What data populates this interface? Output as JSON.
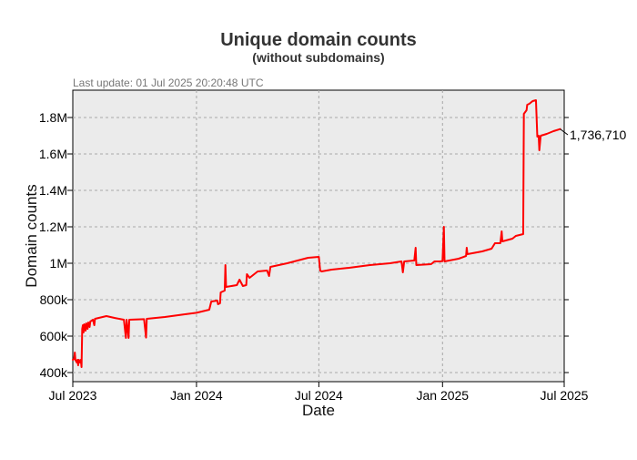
{
  "chart_data": {
    "type": "line",
    "title": "Unique domain counts",
    "subtitle": "(without subdomains)",
    "last_update": "Last update: 01 Jul 2025 20:20:48 UTC",
    "xlabel": "Date",
    "ylabel": "Domain counts",
    "xlim": [
      "2023-07-01",
      "2025-07-01"
    ],
    "ylim": [
      350000,
      1950000
    ],
    "x_ticks": [
      {
        "date": "2023-07-01",
        "label": "Jul 2023"
      },
      {
        "date": "2024-01-01",
        "label": "Jan 2024"
      },
      {
        "date": "2024-07-01",
        "label": "Jul 2024"
      },
      {
        "date": "2025-01-01",
        "label": "Jan 2025"
      },
      {
        "date": "2025-07-01",
        "label": "Jul 2025"
      }
    ],
    "y_ticks": [
      {
        "value": 400000,
        "label": "400k"
      },
      {
        "value": 600000,
        "label": "600k"
      },
      {
        "value": 800000,
        "label": "800k"
      },
      {
        "value": 1000000,
        "label": "1M"
      },
      {
        "value": 1200000,
        "label": "1.2M"
      },
      {
        "value": 1400000,
        "label": "1.4M"
      },
      {
        "value": 1600000,
        "label": "1.6M"
      },
      {
        "value": 1800000,
        "label": "1.8M"
      }
    ],
    "grid": true,
    "last_value_label": "1,736,710",
    "series": [
      {
        "color": "#ff0000",
        "points": [
          [
            "2023-07-01",
            470000
          ],
          [
            "2023-07-03",
            475000
          ],
          [
            "2023-07-04",
            510000
          ],
          [
            "2023-07-05",
            468000
          ],
          [
            "2023-07-07",
            455000
          ],
          [
            "2023-07-08",
            470000
          ],
          [
            "2023-07-09",
            440000
          ],
          [
            "2023-07-10",
            470000
          ],
          [
            "2023-07-11",
            460000
          ],
          [
            "2023-07-12",
            455000
          ],
          [
            "2023-07-13",
            470000
          ],
          [
            "2023-07-14",
            430000
          ],
          [
            "2023-07-15",
            640000
          ],
          [
            "2023-07-16",
            660000
          ],
          [
            "2023-07-17",
            620000
          ],
          [
            "2023-07-18",
            665000
          ],
          [
            "2023-07-20",
            630000
          ],
          [
            "2023-07-21",
            670000
          ],
          [
            "2023-07-23",
            640000
          ],
          [
            "2023-07-24",
            675000
          ],
          [
            "2023-07-26",
            650000
          ],
          [
            "2023-07-27",
            680000
          ],
          [
            "2023-07-29",
            685000
          ],
          [
            "2023-07-31",
            690000
          ],
          [
            "2023-08-02",
            660000
          ],
          [
            "2023-08-03",
            695000
          ],
          [
            "2023-08-20",
            710000
          ],
          [
            "2023-09-01",
            700000
          ],
          [
            "2023-09-15",
            690000
          ],
          [
            "2023-09-18",
            590000
          ],
          [
            "2023-09-19",
            690000
          ],
          [
            "2023-09-22",
            590000
          ],
          [
            "2023-09-23",
            690000
          ],
          [
            "2023-10-15",
            693000
          ],
          [
            "2023-10-18",
            592000
          ],
          [
            "2023-10-19",
            695000
          ],
          [
            "2023-11-15",
            705000
          ],
          [
            "2023-12-15",
            720000
          ],
          [
            "2024-01-01",
            728000
          ],
          [
            "2024-01-20",
            745000
          ],
          [
            "2024-01-23",
            790000
          ],
          [
            "2024-02-01",
            795000
          ],
          [
            "2024-02-02",
            775000
          ],
          [
            "2024-02-05",
            780000
          ],
          [
            "2024-02-06",
            840000
          ],
          [
            "2024-02-12",
            850000
          ],
          [
            "2024-02-13",
            990000
          ],
          [
            "2024-02-14",
            870000
          ],
          [
            "2024-03-01",
            880000
          ],
          [
            "2024-03-05",
            910000
          ],
          [
            "2024-03-10",
            875000
          ],
          [
            "2024-03-15",
            880000
          ],
          [
            "2024-03-16",
            940000
          ],
          [
            "2024-03-20",
            920000
          ],
          [
            "2024-04-01",
            955000
          ],
          [
            "2024-04-15",
            960000
          ],
          [
            "2024-04-18",
            930000
          ],
          [
            "2024-04-20",
            980000
          ],
          [
            "2024-05-15",
            1000000
          ],
          [
            "2024-06-15",
            1030000
          ],
          [
            "2024-07-01",
            1035000
          ],
          [
            "2024-07-03",
            960000
          ],
          [
            "2024-07-05",
            955000
          ],
          [
            "2024-07-20",
            965000
          ],
          [
            "2024-08-15",
            975000
          ],
          [
            "2024-09-15",
            990000
          ],
          [
            "2024-10-15",
            1000000
          ],
          [
            "2024-11-01",
            1010000
          ],
          [
            "2024-11-03",
            950000
          ],
          [
            "2024-11-05",
            1010000
          ],
          [
            "2024-11-20",
            1015000
          ],
          [
            "2024-11-22",
            1085000
          ],
          [
            "2024-11-23",
            990000
          ],
          [
            "2024-12-15",
            995000
          ],
          [
            "2024-12-20",
            1010000
          ],
          [
            "2024-12-28",
            1010000
          ],
          [
            "2025-01-01",
            1012000
          ],
          [
            "2025-01-03",
            1200000
          ],
          [
            "2025-01-04",
            1010000
          ],
          [
            "2025-01-25",
            1025000
          ],
          [
            "2025-02-05",
            1040000
          ],
          [
            "2025-02-06",
            1085000
          ],
          [
            "2025-02-07",
            1050000
          ],
          [
            "2025-03-01",
            1065000
          ],
          [
            "2025-03-15",
            1080000
          ],
          [
            "2025-03-20",
            1110000
          ],
          [
            "2025-03-28",
            1110000
          ],
          [
            "2025-03-30",
            1175000
          ],
          [
            "2025-03-31",
            1120000
          ],
          [
            "2025-04-15",
            1135000
          ],
          [
            "2025-04-20",
            1150000
          ],
          [
            "2025-05-01",
            1160000
          ],
          [
            "2025-05-02",
            1820000
          ],
          [
            "2025-05-04",
            1830000
          ],
          [
            "2025-05-06",
            1840000
          ],
          [
            "2025-05-07",
            1870000
          ],
          [
            "2025-05-10",
            1875000
          ],
          [
            "2025-05-15",
            1890000
          ],
          [
            "2025-05-20",
            1895000
          ],
          [
            "2025-05-22",
            1695000
          ],
          [
            "2025-05-24",
            1700000
          ],
          [
            "2025-05-25",
            1620000
          ],
          [
            "2025-05-27",
            1700000
          ],
          [
            "2025-06-05",
            1710000
          ],
          [
            "2025-06-15",
            1725000
          ],
          [
            "2025-06-25",
            1736710
          ]
        ]
      }
    ]
  }
}
